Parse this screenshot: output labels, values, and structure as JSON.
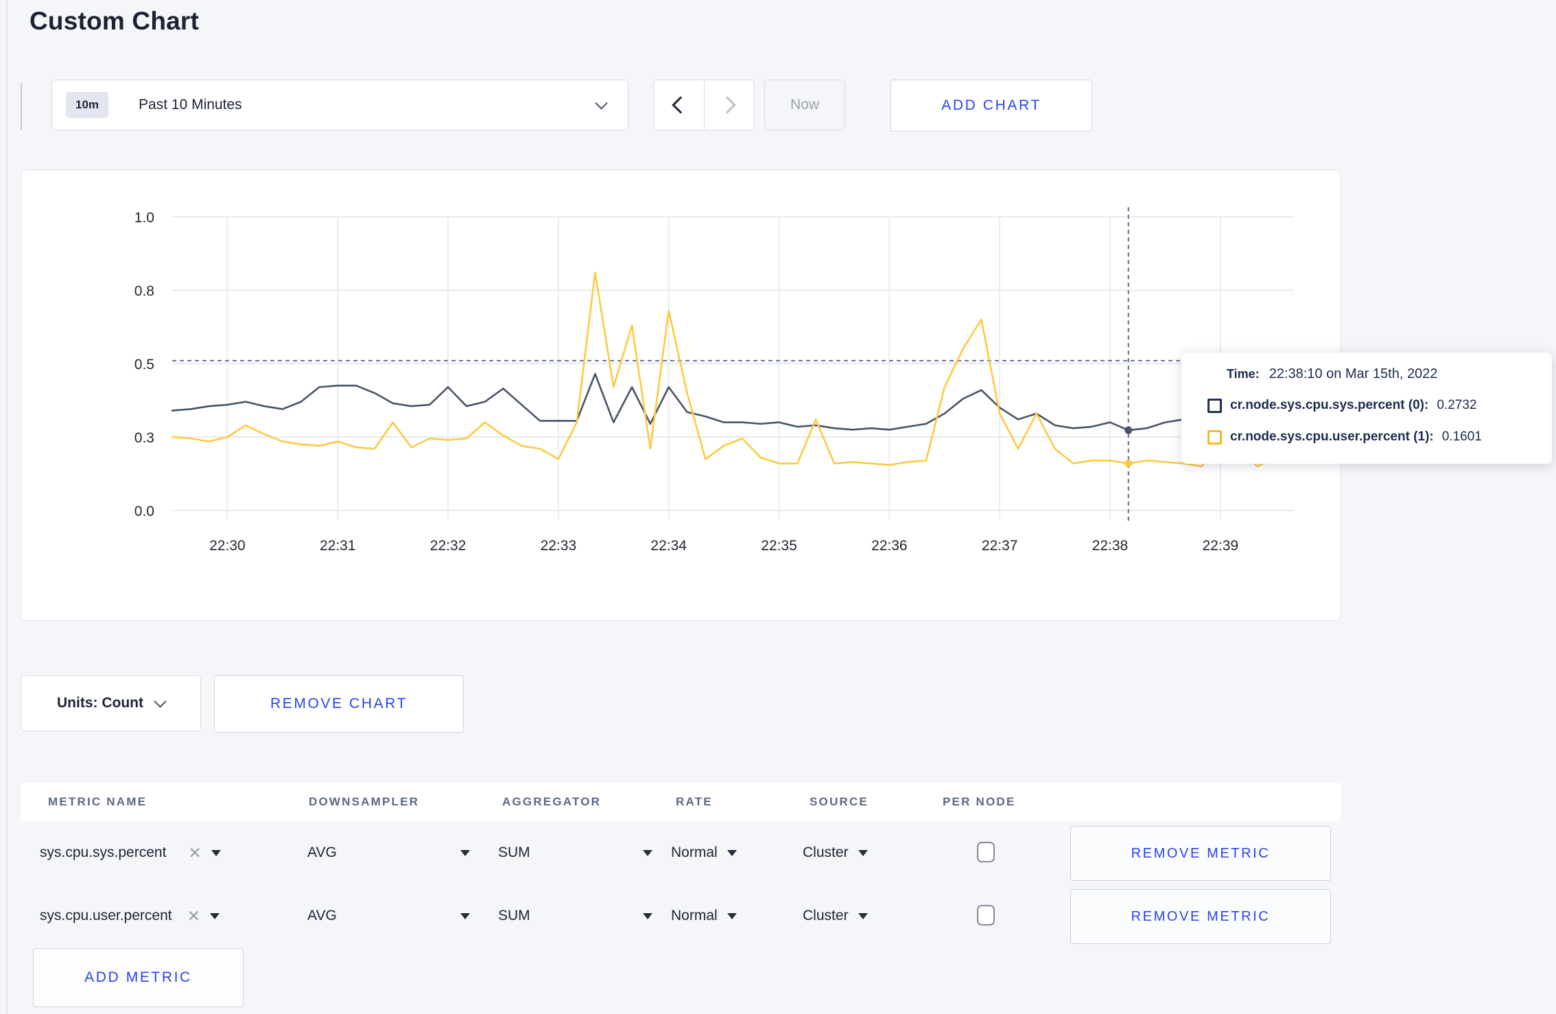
{
  "title": "Custom Chart",
  "icons": {
    "clear": "✕"
  },
  "colors": {
    "accent_blue": "#2543ee",
    "series_sys": "#475366",
    "series_user": "#fdca40",
    "page_bg": "#f5f6fa"
  },
  "toolbar": {
    "time_badge": "10m",
    "time_range_label": "Past 10 Minutes",
    "now_label": "Now",
    "add_chart_label": "ADD CHART"
  },
  "chart_data": {
    "type": "line",
    "title": "",
    "x_start": "22:29:30",
    "x_interval_seconds": 10,
    "x_ticks": [
      "22:30",
      "22:31",
      "22:32",
      "22:33",
      "22:34",
      "22:35",
      "22:36",
      "22:37",
      "22:38",
      "22:39"
    ],
    "y_axis": {
      "ylim": [
        0,
        1
      ],
      "ticks": [
        {
          "value": 0,
          "label": "0.0"
        },
        {
          "value": 0.25,
          "label": "0.3"
        },
        {
          "value": 0.5,
          "label": "0.5"
        },
        {
          "value": 0.75,
          "label": "0.8"
        },
        {
          "value": 1,
          "label": "1.0"
        }
      ]
    },
    "grid": true,
    "legend_position": "tooltip",
    "series": [
      {
        "name": "cr.node.sys.cpu.sys.percent",
        "color": "#475366",
        "values": [
          0.34,
          0.345,
          0.355,
          0.36,
          0.37,
          0.355,
          0.345,
          0.37,
          0.42,
          0.425,
          0.425,
          0.4,
          0.365,
          0.355,
          0.36,
          0.42,
          0.355,
          0.37,
          0.415,
          0.36,
          0.305,
          0.305,
          0.305,
          0.465,
          0.3,
          0.42,
          0.295,
          0.42,
          0.335,
          0.32,
          0.3,
          0.3,
          0.295,
          0.3,
          0.285,
          0.29,
          0.28,
          0.275,
          0.28,
          0.275,
          0.285,
          0.295,
          0.33,
          0.38,
          0.41,
          0.35,
          0.31,
          0.33,
          0.29,
          0.28,
          0.285,
          0.3,
          0.2732,
          0.28,
          0.3,
          0.31,
          0.3,
          0.295,
          0.265,
          0.26,
          0.27,
          0.3
        ]
      },
      {
        "name": "cr.node.sys.cpu.user.percent",
        "color": "#fdca40",
        "values": [
          0.25,
          0.245,
          0.235,
          0.25,
          0.29,
          0.26,
          0.235,
          0.225,
          0.22,
          0.235,
          0.215,
          0.21,
          0.3,
          0.215,
          0.245,
          0.24,
          0.245,
          0.3,
          0.255,
          0.22,
          0.21,
          0.175,
          0.3,
          0.81,
          0.42,
          0.63,
          0.21,
          0.68,
          0.4,
          0.175,
          0.22,
          0.245,
          0.18,
          0.16,
          0.16,
          0.31,
          0.16,
          0.165,
          0.16,
          0.155,
          0.165,
          0.17,
          0.42,
          0.55,
          0.65,
          0.33,
          0.21,
          0.33,
          0.21,
          0.16,
          0.17,
          0.17,
          0.1601,
          0.17,
          0.165,
          0.16,
          0.15,
          0.3,
          0.22,
          0.15,
          0.18,
          0.28
        ]
      }
    ],
    "crosshair": {
      "x_index": 52,
      "time_label": "22:38:10",
      "y_value": 0.51,
      "marked_points": [
        {
          "series": 0,
          "value": 0.2732
        },
        {
          "series": 1,
          "value": 0.1601
        }
      ]
    }
  },
  "tooltip": {
    "time_label": "Time:",
    "time_value": "22:38:10 on Mar 15th, 2022",
    "entries": [
      {
        "name": "cr.node.sys.cpu.sys.percent (0):",
        "value": "0.2732",
        "color": "#20304f"
      },
      {
        "name": "cr.node.sys.cpu.user.percent (1):",
        "value": "0.1601",
        "color": "#f3ba25"
      }
    ]
  },
  "chart_footer": {
    "units_label": "Units: Count",
    "remove_chart_label": "REMOVE CHART"
  },
  "metrics_table": {
    "columns": [
      "METRIC NAME",
      "DOWNSAMPLER",
      "AGGREGATOR",
      "RATE",
      "SOURCE",
      "PER NODE"
    ],
    "rows": [
      {
        "metric": "sys.cpu.sys.percent",
        "downsampler": "AVG",
        "aggregator": "SUM",
        "rate": "Normal",
        "source": "Cluster",
        "per_node_checked": false,
        "remove_label": "REMOVE METRIC"
      },
      {
        "metric": "sys.cpu.user.percent",
        "downsampler": "AVG",
        "aggregator": "SUM",
        "rate": "Normal",
        "source": "Cluster",
        "per_node_checked": false,
        "remove_label": "REMOVE METRIC"
      }
    ],
    "add_metric_label": "ADD METRIC"
  }
}
